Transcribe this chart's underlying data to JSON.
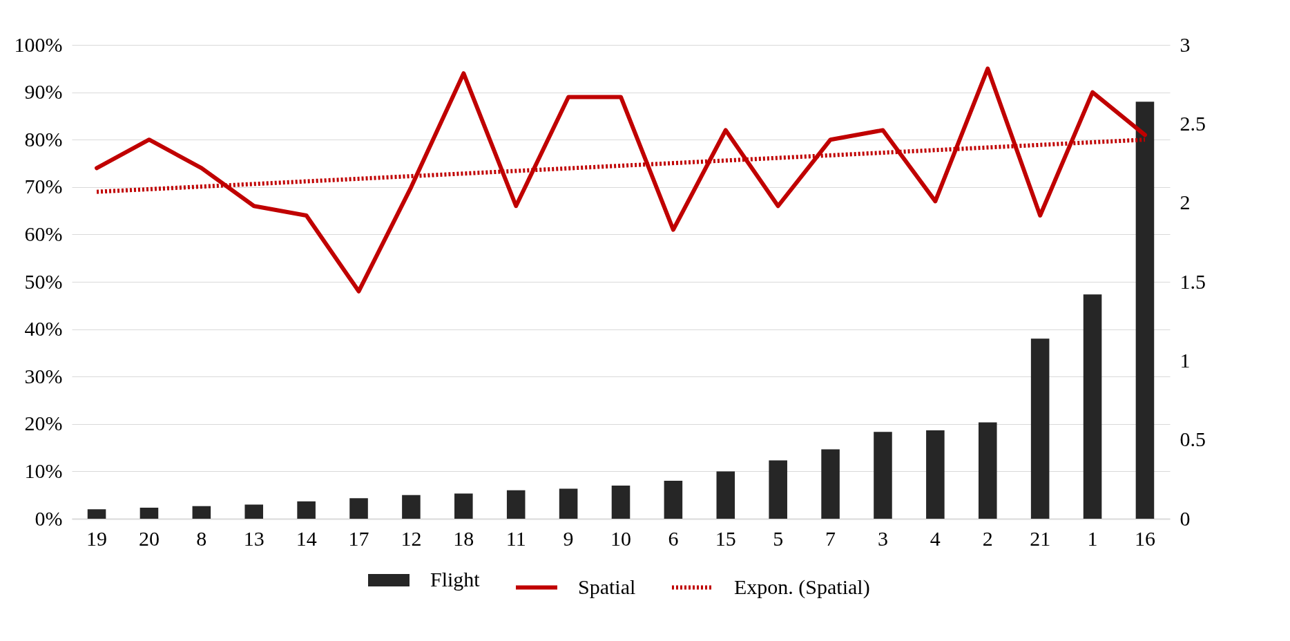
{
  "chart_data": {
    "type": "bar",
    "categories": [
      "19",
      "20",
      "8",
      "13",
      "14",
      "17",
      "12",
      "18",
      "11",
      "9",
      "10",
      "6",
      "15",
      "5",
      "7",
      "3",
      "4",
      "2",
      "21",
      "1",
      "16"
    ],
    "series": [
      {
        "name": "Flight",
        "axis": "y2",
        "color": "#262626",
        "values": [
          0.06,
          0.07,
          0.08,
          0.09,
          0.11,
          0.13,
          0.15,
          0.16,
          0.18,
          0.19,
          0.21,
          0.24,
          0.3,
          0.37,
          0.44,
          0.55,
          0.56,
          0.61,
          1.14,
          1.42,
          2.64
        ]
      },
      {
        "name": "Spatial",
        "type": "line",
        "color": "#c00000",
        "line_style": "solid",
        "values": [
          74,
          80,
          74,
          66,
          64,
          48,
          70,
          94,
          66,
          89,
          89,
          61,
          82,
          66,
          80,
          82,
          67,
          95,
          64,
          90,
          81
        ]
      },
      {
        "name": "Expon. (Spatial)",
        "type": "line",
        "color": "#c00000",
        "line_style": "dotted",
        "x": [
          "19",
          "16"
        ],
        "values": [
          69,
          80
        ]
      }
    ],
    "ylim": [
      0,
      100
    ],
    "yticks": [
      {
        "value": 0,
        "label": "0%"
      },
      {
        "value": 10,
        "label": "10%"
      },
      {
        "value": 20,
        "label": "20%"
      },
      {
        "value": 30,
        "label": "30%"
      },
      {
        "value": 40,
        "label": "40%"
      },
      {
        "value": 50,
        "label": "50%"
      },
      {
        "value": 60,
        "label": "60%"
      },
      {
        "value": 70,
        "label": "70%"
      },
      {
        "value": 80,
        "label": "80%"
      },
      {
        "value": 90,
        "label": "90%"
      },
      {
        "value": 100,
        "label": "100%"
      }
    ],
    "y2lim": [
      0,
      3
    ],
    "y2ticks": [
      0,
      0.5,
      1,
      1.5,
      2,
      2.5,
      3
    ],
    "grid": "y",
    "legend": "bottom"
  }
}
